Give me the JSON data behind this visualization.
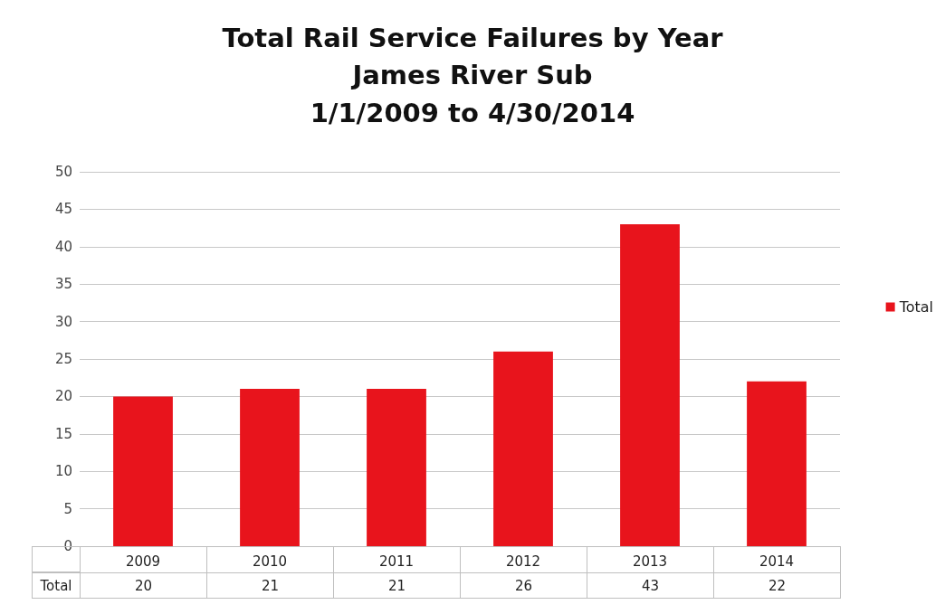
{
  "chart_data": {
    "type": "bar",
    "title": "Total Rail Service Failures by Year",
    "subtitle": "James River Sub\n1/1/2009 to 4/30/2014",
    "categories": [
      "2009",
      "2010",
      "2011",
      "2012",
      "2013",
      "2014"
    ],
    "series": [
      {
        "name": "Total",
        "color": "#e8141c",
        "values": [
          20,
          21,
          21,
          26,
          43,
          22
        ]
      }
    ],
    "ylim": [
      0,
      50
    ],
    "yticks": [
      0,
      5,
      10,
      15,
      20,
      25,
      30,
      35,
      40,
      45,
      50
    ],
    "grid": "y",
    "legend": "right",
    "data_labels": true
  }
}
